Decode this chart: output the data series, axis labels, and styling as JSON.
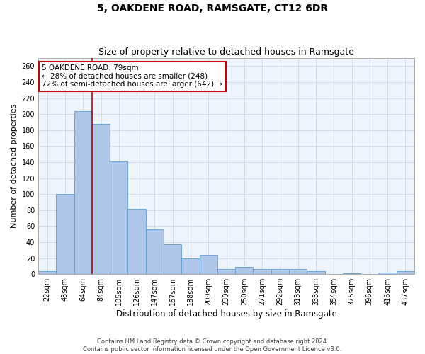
{
  "title": "5, OAKDENE ROAD, RAMSGATE, CT12 6DR",
  "subtitle": "Size of property relative to detached houses in Ramsgate",
  "xlabel": "Distribution of detached houses by size in Ramsgate",
  "ylabel": "Number of detached properties",
  "categories": [
    "22sqm",
    "43sqm",
    "64sqm",
    "84sqm",
    "105sqm",
    "126sqm",
    "147sqm",
    "167sqm",
    "188sqm",
    "209sqm",
    "230sqm",
    "250sqm",
    "271sqm",
    "292sqm",
    "313sqm",
    "333sqm",
    "354sqm",
    "375sqm",
    "396sqm",
    "416sqm",
    "437sqm"
  ],
  "values": [
    4,
    100,
    204,
    188,
    141,
    82,
    56,
    37,
    20,
    24,
    6,
    9,
    6,
    6,
    6,
    4,
    0,
    1,
    0,
    2,
    4
  ],
  "bar_color": "#aec6e8",
  "bar_edge_color": "#5a9fd4",
  "grid_color": "#c8d8e8",
  "background_color": "#eef4fb",
  "property_line_x": 2.5,
  "property_value": 79,
  "annotation_title": "5 OAKDENE ROAD: 79sqm",
  "annotation_line1": "← 28% of detached houses are smaller (248)",
  "annotation_line2": "72% of semi-detached houses are larger (642) →",
  "annotation_box_color": "#ffffff",
  "annotation_box_edge": "#cc0000",
  "property_line_color": "#cc0000",
  "ylim": [
    0,
    270
  ],
  "yticks": [
    0,
    20,
    40,
    60,
    80,
    100,
    120,
    140,
    160,
    180,
    200,
    220,
    240,
    260
  ],
  "footer1": "Contains HM Land Registry data © Crown copyright and database right 2024.",
  "footer2": "Contains public sector information licensed under the Open Government Licence v3.0.",
  "title_fontsize": 10,
  "subtitle_fontsize": 9,
  "tick_fontsize": 7,
  "ylabel_fontsize": 8,
  "xlabel_fontsize": 8.5,
  "annotation_fontsize": 7.5,
  "footer_fontsize": 6
}
